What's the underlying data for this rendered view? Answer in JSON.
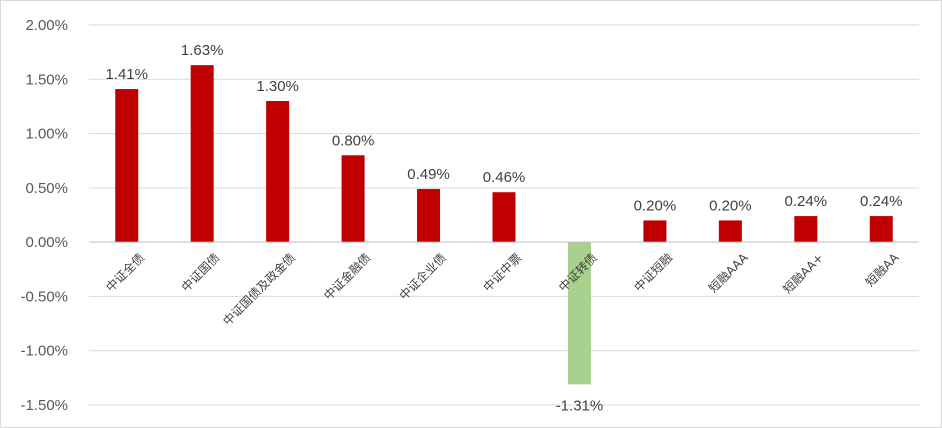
{
  "chart_data": {
    "type": "bar",
    "title": "",
    "xlabel": "",
    "ylabel": "",
    "ylim": [
      -1.5,
      2.0
    ],
    "yticks": [
      2.0,
      1.5,
      1.0,
      0.5,
      0.0,
      -0.5,
      -1.0,
      -1.5
    ],
    "ytick_labels": [
      "2.00%",
      "1.50%",
      "1.00%",
      "0.50%",
      "0.00%",
      "-0.50%",
      "-1.00%",
      "-1.50%"
    ],
    "grid": true,
    "legend": "none",
    "categories": [
      "中证全债",
      "中证国债",
      "中证国债及政金债",
      "中证金融债",
      "中证企业债",
      "中证中票",
      "中证转债",
      "中证短融",
      "短融AAA",
      "短融AA+",
      "短融AA"
    ],
    "values": [
      1.41,
      1.63,
      1.3,
      0.8,
      0.49,
      0.46,
      -1.31,
      0.2,
      0.2,
      0.24,
      0.24
    ],
    "data_labels": [
      "1.41%",
      "1.63%",
      "1.30%",
      "0.80%",
      "0.49%",
      "0.46%",
      "-1.31%",
      "0.20%",
      "0.20%",
      "0.24%",
      "0.24%"
    ],
    "colors": {
      "positive": "#c00000",
      "negative": "#a9d18e"
    }
  }
}
